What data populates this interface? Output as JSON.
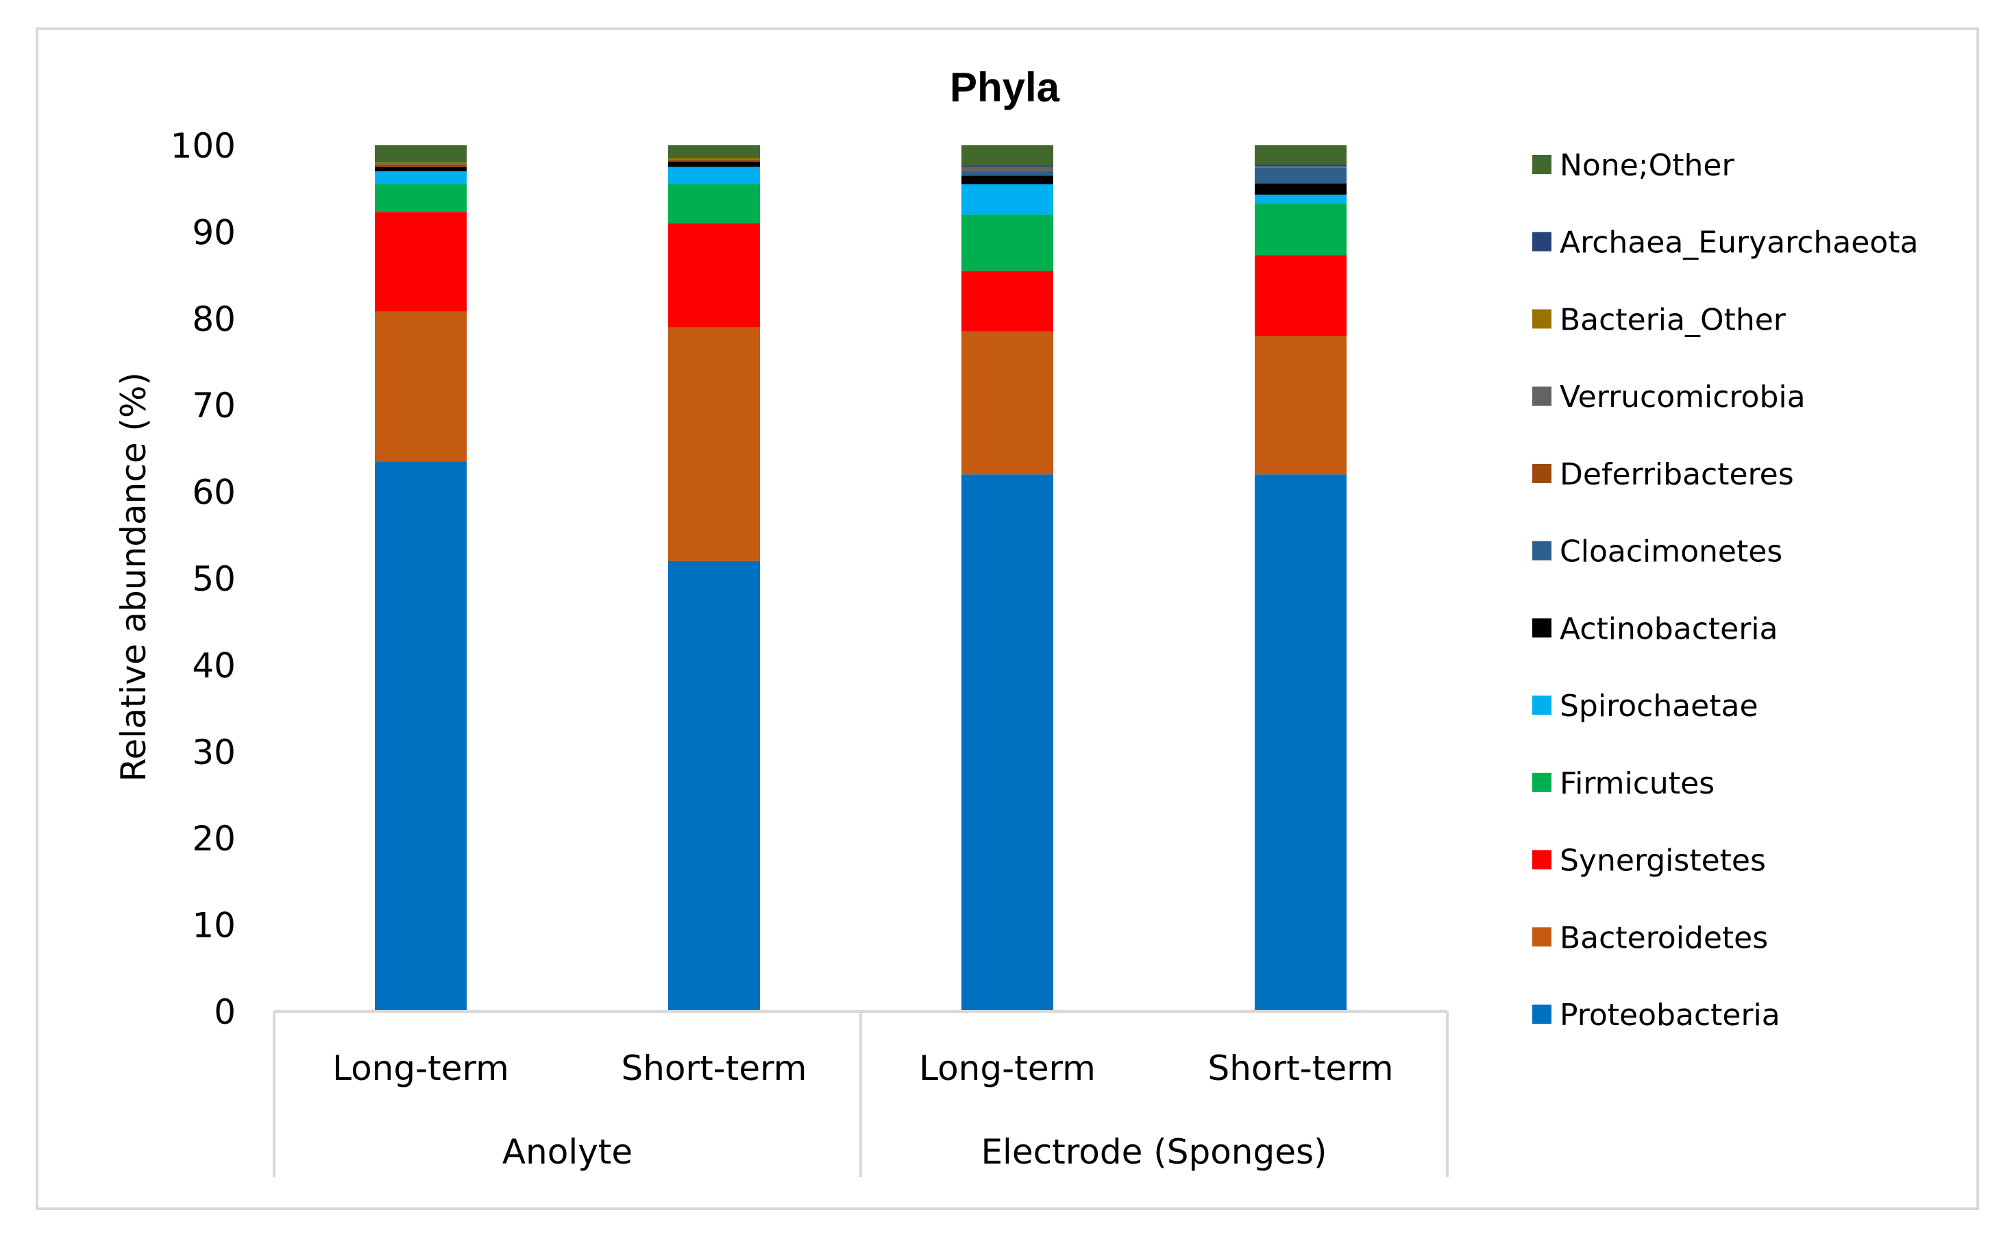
{
  "chart_data": {
    "type": "bar",
    "stacked": true,
    "title": "Phyla",
    "ylabel": "Relative  abundance (%)",
    "xlabel": "",
    "ylim": [
      0,
      100
    ],
    "yticks": [
      "0",
      "10",
      "20",
      "30",
      "40",
      "50",
      "60",
      "70",
      "80",
      "90",
      "100"
    ],
    "categories": [
      "Long-term",
      "Short-term",
      "Long-term",
      "Short-term"
    ],
    "groups": [
      {
        "label": "Anolyte"
      },
      {
        "label": "Electrode (Sponges)"
      }
    ],
    "grid": false,
    "legend_position": "right",
    "series": [
      {
        "name": "Proteobacteria",
        "color": "#0070c0",
        "values": [
          63.5,
          52.0,
          62.0,
          62.0
        ]
      },
      {
        "name": "Bacteroidetes",
        "color": "#c55a11",
        "values": [
          17.3,
          27.0,
          16.5,
          16.0
        ]
      },
      {
        "name": "Synergistetes",
        "color": "#ff0000",
        "values": [
          11.5,
          12.0,
          7.0,
          9.3
        ]
      },
      {
        "name": "Firmicutes",
        "color": "#00b050",
        "values": [
          3.2,
          4.5,
          6.5,
          6.0
        ]
      },
      {
        "name": "Spirochaetae",
        "color": "#00b0f0",
        "values": [
          1.5,
          2.0,
          3.5,
          1.0
        ]
      },
      {
        "name": "Actinobacteria",
        "color": "#000000",
        "values": [
          0.5,
          0.6,
          1.0,
          1.3
        ]
      },
      {
        "name": "Cloacimonetes",
        "color": "#2e5f8c",
        "values": [
          0.0,
          0.0,
          0.5,
          1.8
        ]
      },
      {
        "name": "Deferribacteres",
        "color": "#9e480e",
        "values": [
          0.3,
          0.2,
          0.0,
          0.0
        ]
      },
      {
        "name": "Verrucomicrobia",
        "color": "#636363",
        "values": [
          0.1,
          0.1,
          0.5,
          0.2
        ]
      },
      {
        "name": "Bacteria_Other",
        "color": "#997300",
        "values": [
          0.1,
          0.1,
          0.0,
          0.0
        ]
      },
      {
        "name": "Archaea_Euryarchaeota",
        "color": "#264478",
        "values": [
          0.0,
          0.0,
          0.2,
          0.2
        ]
      },
      {
        "name": "None;Other",
        "color": "#43682b",
        "values": [
          2.0,
          1.5,
          2.3,
          2.2
        ]
      }
    ]
  }
}
